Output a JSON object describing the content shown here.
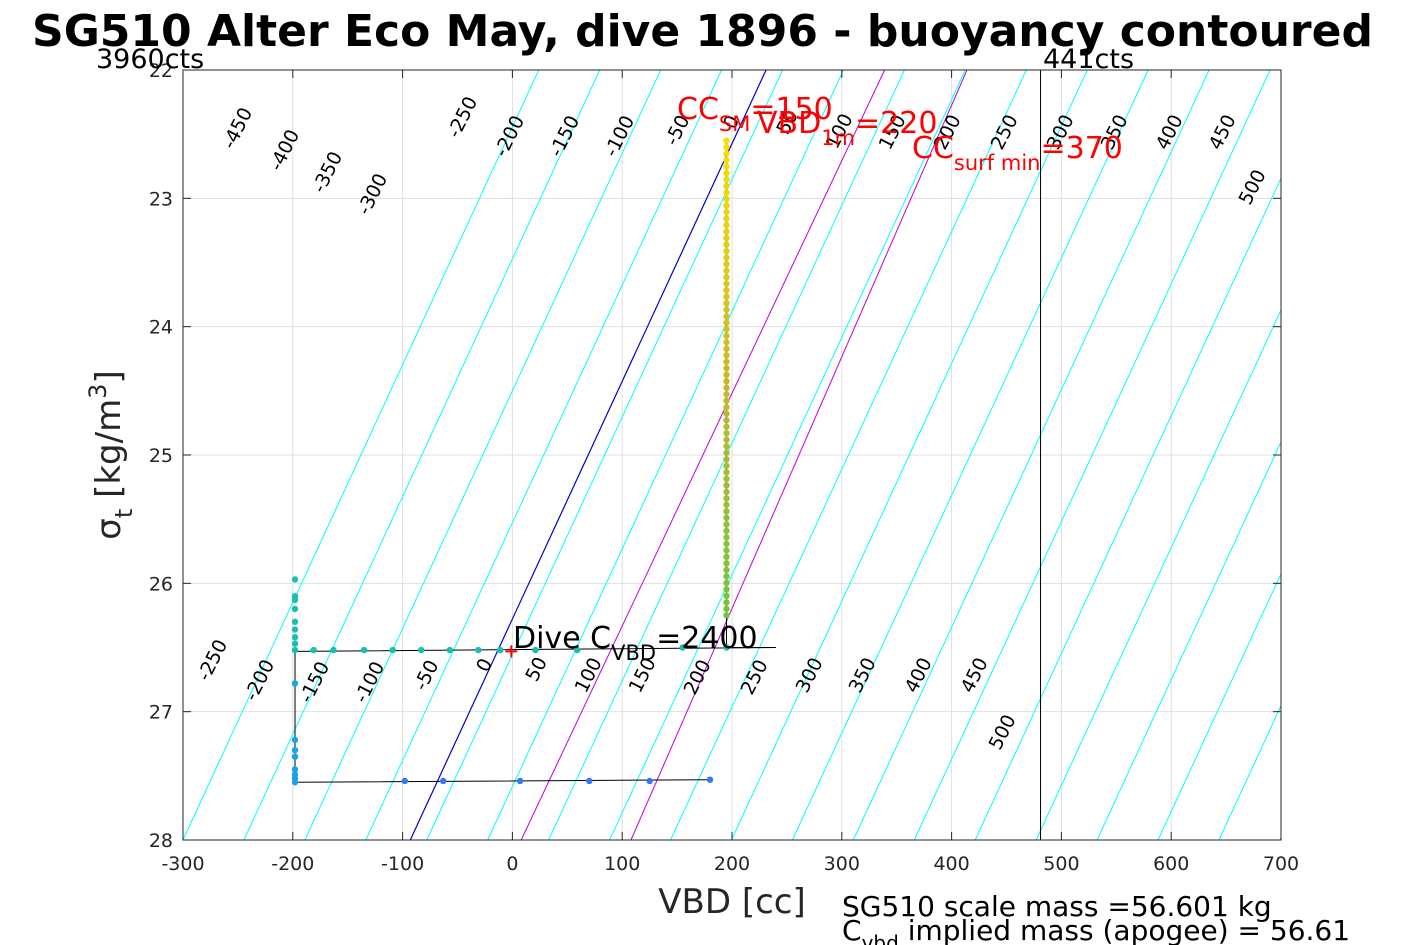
{
  "chart_data": {
    "type": "scatter",
    "title": "SG510 Alter Eco May, dive 1896 - buoyancy contoured",
    "xlabel": "VBD [cc]",
    "ylabel": "σ",
    "ylabel_sub": "t",
    "ylabel_unit": " [kg/m",
    "ylabel_sup": "3",
    "ylabel_close": "]",
    "xlim": [
      -300,
      700
    ],
    "ylim": [
      22,
      28
    ],
    "y_reversed": true,
    "grid": true,
    "xticks": [
      -300,
      -200,
      -100,
      0,
      100,
      200,
      300,
      400,
      500,
      600,
      700
    ],
    "yticks": [
      22,
      23,
      24,
      25,
      26,
      27,
      28
    ],
    "contour_color": "#00ffff",
    "contours_upper": {
      "y_row": 22.45,
      "values": [
        -450,
        -400,
        -350,
        -300,
        -250,
        -200,
        -150,
        -100,
        -50,
        0,
        50,
        100,
        150,
        200,
        250,
        300,
        350,
        400,
        450,
        500
      ],
      "labels": [
        "-450",
        "-400",
        "-350",
        "-300",
        "-250",
        "-200",
        "-150",
        "-100",
        "-50",
        "0",
        "50",
        "100",
        "150",
        "200",
        "250",
        "300",
        "350",
        "400",
        "450",
        "500"
      ]
    },
    "contours_lower": {
      "labels": [
        "-250",
        "-200",
        "-150",
        "-100",
        "-50",
        "0",
        "50",
        "100",
        "150",
        "200",
        "250",
        "300",
        "350",
        "400",
        "450",
        "500"
      ]
    },
    "neutral_line": {
      "color": "#0000cc",
      "x_at_ylim": [
        231,
        -93
      ]
    },
    "magenta_lines": {
      "color": "#bb00dd",
      "lines": [
        [
          339,
          8
        ],
        [
          414,
          108
        ]
      ]
    },
    "vertical_line": {
      "x": 481,
      "color": "#000000"
    },
    "top_left_label": "3960cts",
    "top_right_label": "441cts",
    "dive_path": {
      "color": "#000000",
      "points": [
        [
          181,
          27.53
        ],
        [
          -198,
          27.55
        ],
        [
          -198,
          26.53
        ],
        [
          240,
          26.5
        ],
        [
          195,
          26.5
        ],
        [
          195,
          22.55
        ]
      ]
    },
    "markers_down": {
      "color": "#3377ff",
      "points": [
        [
          180,
          27.53
        ],
        [
          125,
          27.54
        ],
        [
          70,
          27.54
        ],
        [
          7,
          27.54
        ],
        [
          -63,
          27.54
        ],
        [
          -98,
          27.54
        ]
      ]
    },
    "markers_bottom": {
      "color": "#1aa3e0",
      "points": [
        [
          -198,
          27.55
        ],
        [
          -198,
          27.52
        ],
        [
          -198,
          27.49
        ],
        [
          -198,
          27.45
        ],
        [
          -198,
          27.35
        ],
        [
          -198,
          27.3
        ],
        [
          -198,
          27.22
        ],
        [
          -198,
          26.78
        ]
      ]
    },
    "markers_mid": {
      "color": "#1abfb0",
      "points": [
        [
          -198,
          26.52
        ],
        [
          -198,
          26.47
        ],
        [
          -198,
          26.42
        ],
        [
          -198,
          26.36
        ],
        [
          -198,
          26.3
        ],
        [
          -198,
          26.2
        ],
        [
          -198,
          26.13
        ],
        [
          -198,
          26.1
        ],
        [
          -198,
          25.97
        ],
        [
          -181,
          26.52
        ],
        [
          -163,
          26.52
        ],
        [
          -135,
          26.52
        ],
        [
          -109,
          26.52
        ],
        [
          -83,
          26.52
        ],
        [
          -57,
          26.52
        ],
        [
          -31,
          26.52
        ],
        [
          -11,
          26.52
        ],
        [
          21,
          26.52
        ],
        [
          59,
          26.52
        ],
        [
          155,
          26.5
        ],
        [
          195,
          26.5
        ]
      ]
    },
    "ascent_column": {
      "x": 195,
      "y_start": 26.25,
      "y_end": 22.55,
      "count": 74,
      "colors": [
        "#6fc640",
        "#c8b82a",
        "#f5e200"
      ]
    },
    "dive_cvbd_marker": {
      "x": -1,
      "y": 26.53,
      "color": "#ff0000",
      "symbol": "+"
    },
    "annotations": {
      "cc": {
        "main": "CC",
        "sub": "SM",
        "value": "=150"
      },
      "vbd": {
        "main": "VBD",
        "sub": "1m",
        "value": "=220"
      },
      "surf": {
        "main": "CC",
        "sub": "surf min",
        "value": "=370"
      },
      "dive": {
        "main": "Dive C",
        "sub": "VBD",
        "value": "=2400"
      }
    },
    "footer_line1": "SG510 scale mass =56.601 kg",
    "footer_line2_main": "C",
    "footer_line2_sub": "vbd",
    "footer_line2_rest": " implied mass (apogee) = 56.61"
  }
}
